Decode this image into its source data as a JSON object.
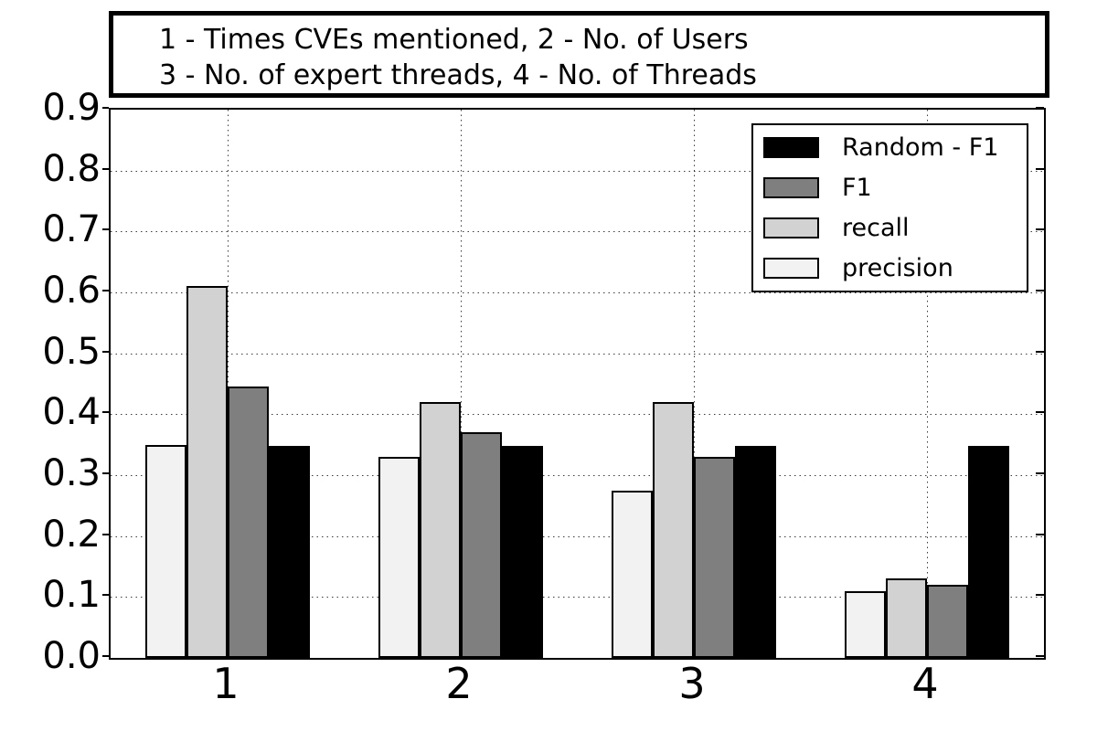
{
  "figure": {
    "title_line1": "1 - Times CVEs mentioned, 2 - No. of Users",
    "title_line2": "3 - No. of expert threads, 4 - No. of Threads"
  },
  "chart_data": {
    "type": "bar",
    "title": "1 - Times CVEs mentioned, 2 - No. of Users\n3 - No. of expert threads, 4 - No. of Threads",
    "xlabel": "",
    "ylabel": "",
    "categories": [
      "1",
      "2",
      "3",
      "4"
    ],
    "category_meanings": {
      "1": "Times CVEs mentioned",
      "2": "No. of Users",
      "3": "No. of expert threads",
      "4": "No. of Threads"
    },
    "series": [
      {
        "name": "precision",
        "color": "#f2f2f2",
        "values": [
          0.35,
          0.33,
          0.275,
          0.11
        ]
      },
      {
        "name": "recall",
        "color": "#d2d2d2",
        "values": [
          0.61,
          0.42,
          0.42,
          0.13
        ]
      },
      {
        "name": "F1",
        "color": "#7f7f7f",
        "values": [
          0.445,
          0.37,
          0.33,
          0.12
        ]
      },
      {
        "name": "Random - F1",
        "color": "#000000",
        "values": [
          0.348,
          0.348,
          0.348,
          0.348
        ]
      }
    ],
    "legend": {
      "position": "upper right",
      "entries": [
        "Random - F1",
        "F1",
        "recall",
        "precision"
      ]
    },
    "ylim": [
      0.0,
      0.9
    ],
    "yticks": [
      "0.0",
      "0.1",
      "0.2",
      "0.3",
      "0.4",
      "0.5",
      "0.6",
      "0.7",
      "0.8",
      "0.9"
    ],
    "grid": true,
    "grid_style": "dotted",
    "bar_edge_color": "#000000",
    "background_color": "#ffffff"
  }
}
